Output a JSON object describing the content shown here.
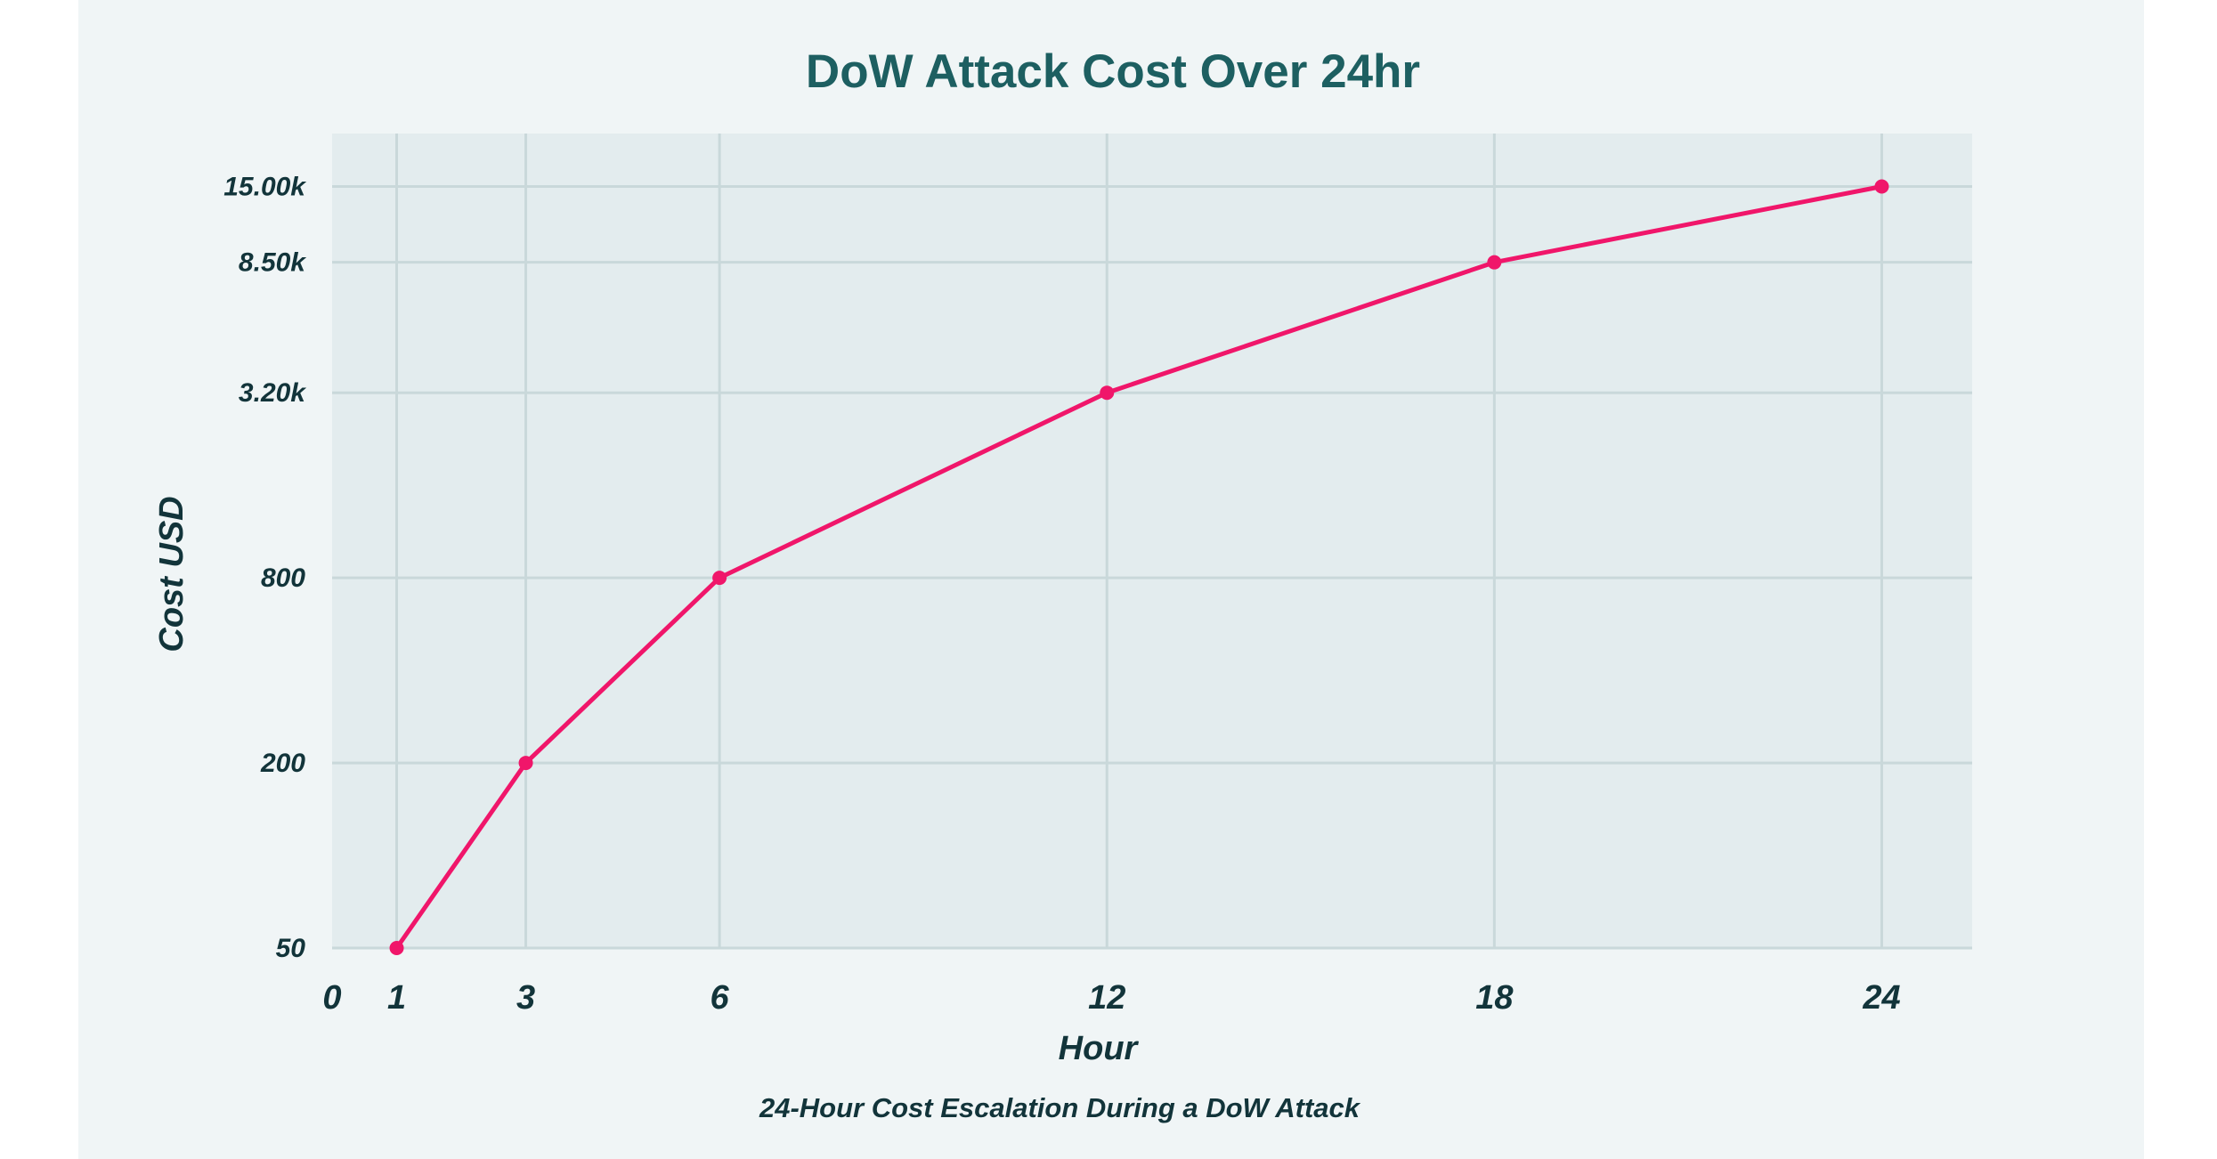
{
  "chart_data": {
    "type": "line",
    "title": "DoW Attack Cost Over 24hr",
    "xlabel": "Hour",
    "ylabel": "Cost USD",
    "caption": "24-Hour Cost Escalation During a DoW Attack",
    "x": [
      1,
      3,
      6,
      12,
      18,
      24
    ],
    "x_ticks": [
      {
        "value": 0,
        "label": "0"
      },
      {
        "value": 1,
        "label": "1"
      },
      {
        "value": 3,
        "label": "3"
      },
      {
        "value": 6,
        "label": "6"
      },
      {
        "value": 12,
        "label": "12"
      },
      {
        "value": 18,
        "label": "18"
      },
      {
        "value": 24,
        "label": "24"
      }
    ],
    "y_scale": "log",
    "y_ticks": [
      {
        "value": 50,
        "label": "50"
      },
      {
        "value": 200,
        "label": "200"
      },
      {
        "value": 800,
        "label": "800"
      },
      {
        "value": 3200,
        "label": "3.20k"
      },
      {
        "value": 8500,
        "label": "8.50k"
      },
      {
        "value": 15000,
        "label": "15.00k"
      }
    ],
    "xlim": [
      0,
      25.4
    ],
    "ylim": [
      50,
      22300
    ],
    "grid": true,
    "series": [
      {
        "values": [
          50,
          200,
          800,
          3200,
          8500,
          15000
        ]
      }
    ],
    "colors": {
      "line": "#f0166a",
      "title": "#1d5f61",
      "text": "#12343a",
      "plot_bg": "#e3ecee",
      "grid": "#c9d8da",
      "card_bg": "#f0f5f6"
    }
  }
}
